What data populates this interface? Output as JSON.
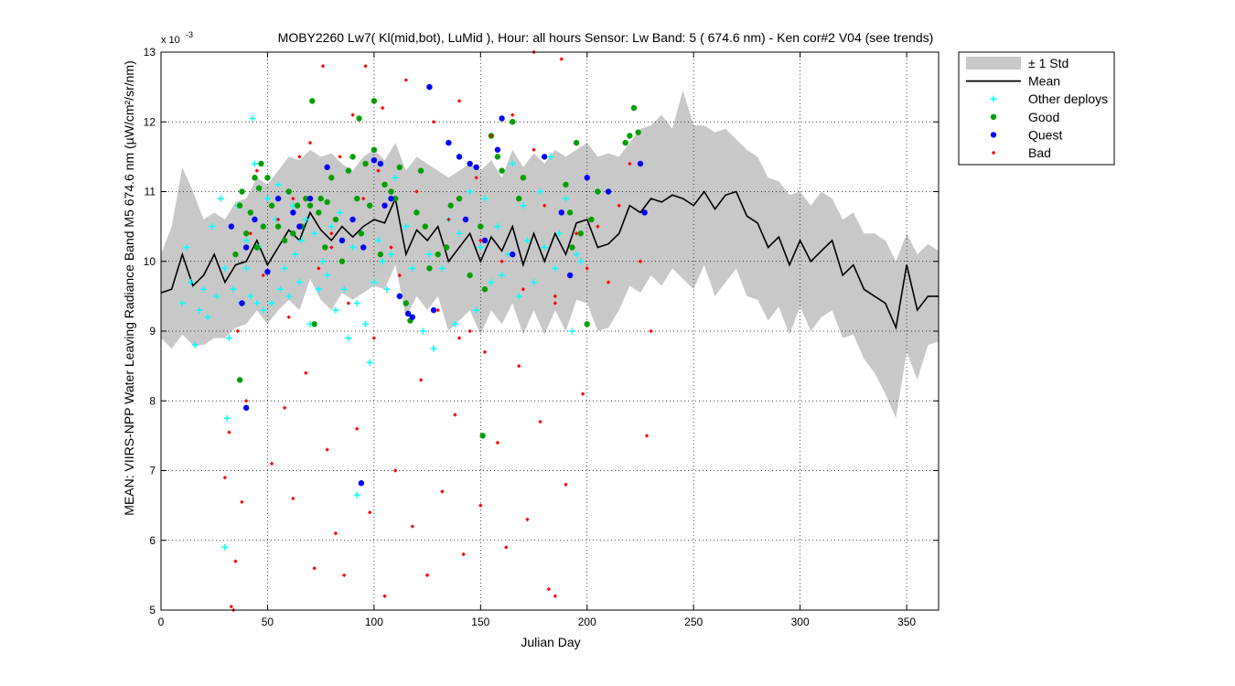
{
  "chart_data": {
    "type": "scatter",
    "title": "MOBY2260   Lw7( Kl(mid,bot), LuMid ),   Hour: all hours  Sensor: Lw Band: 5 ( 674.6 nm)  - Ken cor#2 V04 (see trends)",
    "xlabel": "Julian Day",
    "ylabel": "MEAN: VIIRS-NPP Water Leaving Radiance Band M5 674.6 nm (µW/cm²/sr/nm)",
    "y_exponent_label": "x 10",
    "y_exponent_power": "-3",
    "xlim": [
      0,
      365
    ],
    "ylim": [
      5,
      13
    ],
    "xticks": [
      0,
      50,
      100,
      150,
      200,
      250,
      300,
      350
    ],
    "yticks": [
      5,
      6,
      7,
      8,
      9,
      10,
      11,
      12,
      13
    ],
    "grid": true,
    "legend_position": "outside-top-right",
    "legend": [
      {
        "label": "± 1 Std",
        "kind": "band",
        "color": "#c8c8c8"
      },
      {
        "label": "Mean",
        "kind": "line",
        "color": "#000000"
      },
      {
        "label": "Other deploys",
        "kind": "plus",
        "color": "#00ffff"
      },
      {
        "label": "Good",
        "kind": "dot",
        "color": "#00a000"
      },
      {
        "label": "Quest",
        "kind": "dot",
        "color": "#0000ff"
      },
      {
        "label": "Bad",
        "kind": "diamond",
        "color": "#ff0000"
      }
    ],
    "mean": {
      "x": [
        0,
        5,
        10,
        15,
        20,
        25,
        30,
        35,
        40,
        45,
        50,
        55,
        60,
        65,
        70,
        75,
        80,
        85,
        90,
        95,
        100,
        105,
        110,
        115,
        120,
        125,
        130,
        135,
        140,
        145,
        150,
        155,
        160,
        165,
        170,
        175,
        180,
        185,
        190,
        195,
        200,
        205,
        210,
        215,
        220,
        225,
        230,
        235,
        240,
        245,
        250,
        255,
        260,
        265,
        270,
        275,
        280,
        285,
        290,
        295,
        300,
        305,
        310,
        315,
        320,
        325,
        330,
        335,
        340,
        345,
        350,
        355,
        360,
        365
      ],
      "y": [
        9.55,
        9.6,
        10.1,
        9.65,
        9.8,
        10.1,
        9.7,
        9.95,
        10.0,
        10.3,
        9.95,
        10.2,
        10.45,
        10.3,
        10.7,
        10.45,
        10.3,
        10.5,
        10.35,
        10.5,
        10.6,
        10.55,
        10.9,
        10.1,
        10.45,
        10.3,
        10.5,
        10.0,
        10.2,
        10.4,
        10.0,
        10.35,
        10.15,
        10.5,
        9.95,
        10.4,
        10.0,
        10.4,
        10.1,
        10.55,
        10.6,
        10.2,
        10.25,
        10.4,
        10.8,
        10.7,
        10.9,
        10.85,
        10.95,
        10.9,
        10.8,
        11.0,
        10.75,
        10.95,
        11.0,
        10.65,
        10.55,
        10.2,
        10.35,
        9.95,
        10.3,
        10.0,
        10.15,
        10.3,
        9.8,
        9.95,
        9.6,
        9.5,
        9.4,
        9.05,
        9.95,
        9.3,
        9.5,
        9.5
      ],
      "std_upper": [
        10.1,
        10.5,
        11.35,
        11.0,
        10.6,
        10.7,
        10.6,
        10.85,
        10.9,
        11.2,
        11.1,
        11.3,
        11.5,
        11.45,
        11.6,
        11.5,
        11.55,
        11.4,
        11.3,
        11.5,
        11.6,
        11.45,
        11.7,
        11.3,
        11.5,
        11.4,
        11.3,
        11.2,
        11.3,
        11.4,
        11.3,
        11.45,
        11.2,
        11.6,
        11.35,
        11.55,
        11.4,
        11.6,
        11.5,
        11.6,
        11.7,
        11.5,
        11.55,
        11.5,
        11.7,
        11.9,
        11.95,
        12.1,
        11.9,
        12.45,
        11.95,
        11.95,
        11.85,
        11.9,
        11.75,
        11.6,
        11.5,
        11.2,
        11.15,
        10.95,
        11.0,
        10.8,
        11.0,
        10.9,
        10.6,
        10.7,
        10.4,
        10.4,
        10.3,
        10.0,
        10.4,
        10.1,
        10.25,
        10.15
      ],
      "std_lower": [
        8.9,
        8.75,
        8.95,
        8.8,
        8.8,
        8.9,
        8.9,
        9.05,
        9.1,
        9.3,
        9.1,
        9.3,
        9.45,
        9.3,
        9.75,
        9.45,
        9.3,
        9.55,
        9.45,
        9.55,
        9.65,
        9.6,
        9.95,
        9.2,
        9.5,
        9.3,
        9.5,
        9.0,
        9.15,
        9.3,
        8.95,
        9.3,
        9.1,
        9.4,
        8.95,
        9.3,
        8.95,
        9.3,
        9.0,
        9.45,
        9.4,
        9.0,
        9.05,
        9.3,
        9.65,
        9.55,
        9.8,
        9.65,
        9.9,
        9.75,
        9.6,
        9.95,
        9.5,
        9.7,
        9.9,
        9.5,
        9.45,
        9.15,
        9.35,
        8.95,
        9.35,
        9.0,
        9.2,
        9.3,
        8.9,
        8.95,
        8.6,
        8.4,
        8.1,
        7.75,
        8.7,
        8.3,
        8.8,
        8.85
      ]
    },
    "series": [
      {
        "name": "Other deploys",
        "x": [
          10,
          12,
          14,
          16,
          18,
          20,
          22,
          24,
          26,
          28,
          30,
          32,
          34,
          36,
          38,
          40,
          42,
          43,
          44,
          45,
          46,
          48,
          50,
          52,
          54,
          55,
          56,
          58,
          60,
          62,
          63,
          65,
          66,
          68,
          70,
          72,
          74,
          76,
          78,
          80,
          82,
          84,
          86,
          88,
          90,
          92,
          94,
          96,
          98,
          100,
          102,
          104,
          106,
          108,
          110,
          112,
          115,
          118,
          120,
          123,
          126,
          128,
          132,
          135,
          138,
          140,
          145,
          148,
          150,
          152,
          155,
          158,
          160,
          163,
          165,
          168,
          170,
          172,
          175,
          178,
          180,
          183,
          185,
          187,
          190,
          193,
          195,
          197,
          31,
          92,
          30,
          40
        ],
        "y": [
          9.4,
          10.2,
          9.7,
          8.8,
          9.3,
          9.6,
          9.2,
          10.5,
          9.5,
          10.9,
          9.9,
          8.9,
          9.6,
          10.8,
          9.4,
          10.3,
          9.5,
          12.05,
          11.4,
          9.4,
          10.2,
          9.3,
          10.9,
          9.4,
          10.6,
          11.1,
          9.6,
          9.9,
          9.5,
          10.8,
          10.1,
          9.7,
          10.3,
          10.6,
          9.1,
          10.4,
          9.6,
          10.0,
          9.8,
          10.5,
          9.3,
          10.7,
          9.6,
          8.9,
          10.2,
          9.4,
          10.4,
          9.1,
          8.55,
          9.7,
          10.3,
          10.0,
          9.6,
          10.1,
          11.2,
          9.5,
          10.5,
          9.9,
          10.7,
          9.0,
          10.1,
          8.75,
          9.9,
          10.6,
          9.1,
          10.4,
          11.0,
          9.3,
          10.2,
          10.9,
          9.7,
          10.5,
          9.8,
          10.1,
          11.4,
          9.5,
          10.8,
          10.3,
          9.7,
          11.0,
          10.2,
          11.5,
          9.9,
          10.4,
          10.9,
          9.0,
          10.1,
          10.0,
          7.75,
          6.65,
          5.9,
          9.9
        ]
      },
      {
        "name": "Good",
        "x": [
          35,
          37,
          38,
          40,
          42,
          44,
          45,
          46,
          47,
          48,
          50,
          52,
          55,
          58,
          60,
          62,
          64,
          66,
          68,
          70,
          72,
          74,
          75,
          77,
          78,
          80,
          82,
          85,
          88,
          90,
          92,
          94,
          96,
          98,
          100,
          103,
          105,
          108,
          110,
          112,
          115,
          117,
          120,
          122,
          124,
          126,
          130,
          134,
          136,
          140,
          145,
          150,
          152,
          155,
          158,
          160,
          165,
          168,
          170,
          190,
          192,
          193,
          195,
          197,
          200,
          205,
          218,
          220,
          222,
          224,
          71,
          100,
          93,
          37,
          151,
          202
        ],
        "y": [
          10.1,
          10.8,
          11.0,
          10.4,
          10.7,
          11.2,
          10.2,
          11.05,
          11.4,
          10.5,
          11.2,
          10.8,
          10.5,
          10.3,
          11.0,
          10.4,
          10.8,
          10.5,
          10.9,
          10.8,
          9.1,
          10.7,
          10.9,
          10.2,
          10.85,
          11.2,
          10.6,
          10.0,
          11.3,
          11.5,
          10.9,
          10.4,
          11.4,
          10.8,
          11.6,
          10.1,
          11.1,
          11.0,
          10.9,
          11.35,
          9.4,
          9.15,
          10.7,
          11.3,
          10.5,
          9.9,
          10.1,
          10.2,
          10.8,
          10.9,
          9.8,
          10.5,
          9.6,
          11.8,
          11.5,
          11.3,
          12.0,
          10.9,
          11.2,
          11.1,
          10.7,
          10.2,
          11.7,
          10.4,
          9.1,
          11.0,
          11.7,
          11.8,
          12.2,
          11.85,
          12.3,
          12.3,
          12.05,
          8.3,
          7.5,
          10.6
        ]
      },
      {
        "name": "Quest",
        "x": [
          33,
          38,
          40,
          44,
          50,
          55,
          62,
          65,
          70,
          78,
          85,
          90,
          95,
          100,
          103,
          105,
          108,
          112,
          118,
          128,
          135,
          140,
          143,
          145,
          148,
          152,
          158,
          165,
          180,
          188,
          192,
          200,
          210,
          225,
          227,
          116,
          40,
          94,
          126,
          160
        ],
        "y": [
          10.5,
          9.4,
          10.2,
          10.6,
          9.85,
          10.9,
          10.7,
          10.5,
          10.9,
          11.35,
          10.3,
          10.6,
          10.2,
          11.45,
          11.4,
          10.8,
          10.9,
          9.5,
          9.2,
          9.3,
          11.7,
          11.5,
          10.6,
          11.4,
          11.35,
          10.3,
          11.6,
          10.1,
          11.5,
          10.7,
          9.8,
          11.2,
          11.0,
          11.4,
          10.7,
          9.25,
          7.9,
          6.82,
          12.5,
          12.05
        ]
      },
      {
        "name": "Bad",
        "x": [
          30,
          32,
          34,
          36,
          38,
          40,
          42,
          45,
          48,
          52,
          55,
          58,
          60,
          62,
          65,
          68,
          70,
          72,
          74,
          76,
          78,
          80,
          82,
          84,
          86,
          88,
          90,
          92,
          95,
          98,
          100,
          102,
          105,
          108,
          110,
          112,
          115,
          118,
          120,
          122,
          125,
          128,
          130,
          132,
          135,
          138,
          140,
          142,
          145,
          148,
          150,
          152,
          155,
          158,
          160,
          162,
          165,
          168,
          170,
          172,
          175,
          178,
          180,
          182,
          185,
          188,
          190,
          195,
          198,
          200,
          205,
          210,
          215,
          220,
          225,
          228,
          230,
          35,
          80,
          140,
          175,
          185,
          33,
          96,
          150,
          185,
          62,
          104
        ],
        "y": [
          6.9,
          7.55,
          5.0,
          9.0,
          6.55,
          8.0,
          10.4,
          11.3,
          9.8,
          7.1,
          10.6,
          7.9,
          9.2,
          6.6,
          11.5,
          8.4,
          11.7,
          5.6,
          9.9,
          12.8,
          7.3,
          10.2,
          6.1,
          11.5,
          5.5,
          9.4,
          12.1,
          7.6,
          10.9,
          6.4,
          8.9,
          11.3,
          5.2,
          10.2,
          7.0,
          9.8,
          12.6,
          6.2,
          11.0,
          8.3,
          5.5,
          12.0,
          9.3,
          6.7,
          10.6,
          7.8,
          12.3,
          5.8,
          9.0,
          11.2,
          6.5,
          8.7,
          11.8,
          7.4,
          10.0,
          5.9,
          12.1,
          8.5,
          9.6,
          6.3,
          11.6,
          7.7,
          10.8,
          5.3,
          9.4,
          12.9,
          6.8,
          10.4,
          8.1,
          9.9,
          10.5,
          9.7,
          10.8,
          11.4,
          10.0,
          7.5,
          9.0,
          5.7,
          10.4,
          8.9,
          13.0,
          5.2,
          5.05,
          12.8,
          10.3,
          9.5,
          10.9,
          12.2
        ]
      }
    ]
  }
}
